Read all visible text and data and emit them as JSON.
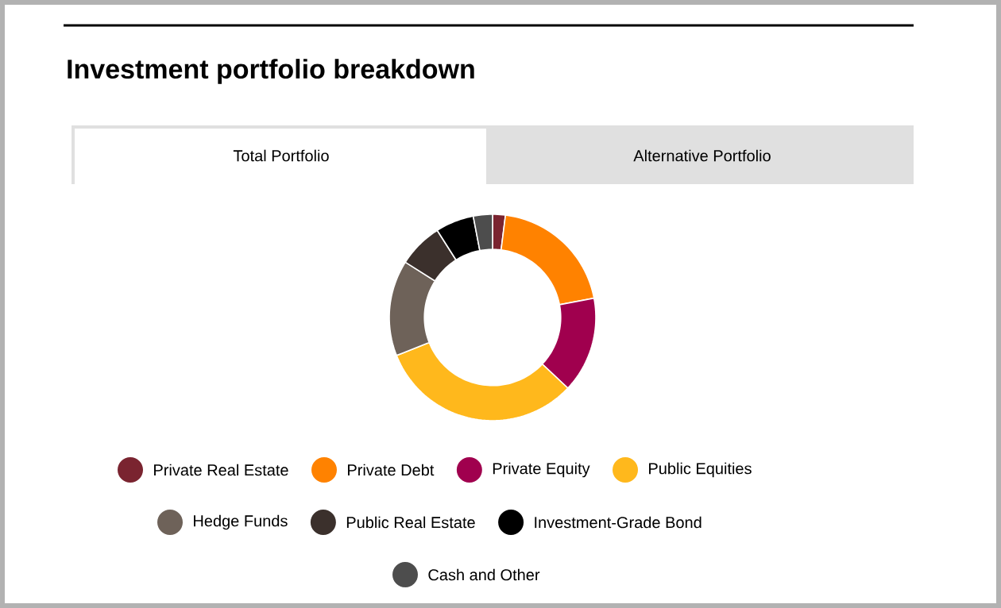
{
  "chart_data": {
    "type": "donut",
    "title": "Investment portfolio breakdown",
    "annotations": [
      "Total Portfolio",
      "Alternative Portfolio"
    ],
    "categories": [
      "Private Real Estate",
      "Private Debt",
      "Private Equity",
      "Public Equities",
      "Hedge Funds",
      "Public Real Estate",
      "Investment-Grade Bond",
      "Cash and Other"
    ],
    "values": [
      2,
      20,
      15,
      32,
      15,
      7,
      6,
      3
    ],
    "colors": [
      "#7a2430",
      "#ff8200",
      "#a0004e",
      "#ffb81c",
      "#6e6259",
      "#3b302c",
      "#000000",
      "#4d4d4d"
    ],
    "legend": "bottom"
  }
}
